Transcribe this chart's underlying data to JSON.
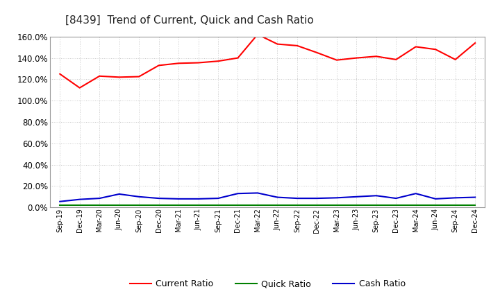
{
  "title": "[8439]  Trend of Current, Quick and Cash Ratio",
  "labels": [
    "Sep-19",
    "Dec-19",
    "Mar-20",
    "Jun-20",
    "Sep-20",
    "Dec-20",
    "Mar-21",
    "Jun-21",
    "Sep-21",
    "Dec-21",
    "Mar-22",
    "Jun-22",
    "Sep-22",
    "Dec-22",
    "Mar-23",
    "Jun-23",
    "Sep-23",
    "Dec-23",
    "Mar-24",
    "Jun-24",
    "Sep-24",
    "Dec-24"
  ],
  "current_ratio": [
    125.0,
    112.0,
    123.0,
    122.0,
    122.5,
    133.0,
    135.0,
    135.5,
    137.0,
    140.0,
    162.0,
    153.0,
    151.5,
    145.0,
    138.0,
    140.0,
    141.5,
    138.5,
    150.5,
    148.0,
    138.5,
    154.0
  ],
  "quick_ratio": [
    2.0,
    2.0,
    2.0,
    2.0,
    2.0,
    2.0,
    2.0,
    2.0,
    2.0,
    2.0,
    2.0,
    2.0,
    2.0,
    2.0,
    2.0,
    2.0,
    2.0,
    2.0,
    2.0,
    2.0,
    2.0,
    2.0
  ],
  "cash_ratio": [
    5.5,
    7.5,
    8.5,
    12.5,
    10.0,
    8.5,
    8.0,
    8.0,
    8.5,
    13.0,
    13.5,
    9.5,
    8.5,
    8.5,
    9.0,
    10.0,
    11.0,
    8.5,
    13.0,
    8.0,
    9.0,
    9.5
  ],
  "current_color": "#FF0000",
  "quick_color": "#008000",
  "cash_color": "#0000CD",
  "ylim": [
    0,
    160
  ],
  "yticks": [
    0,
    20,
    40,
    60,
    80,
    100,
    120,
    140,
    160
  ],
  "background_color": "#FFFFFF",
  "plot_bg_color": "#FFFFFF",
  "grid_color": "#BBBBBB",
  "legend_labels": [
    "Current Ratio",
    "Quick Ratio",
    "Cash Ratio"
  ]
}
